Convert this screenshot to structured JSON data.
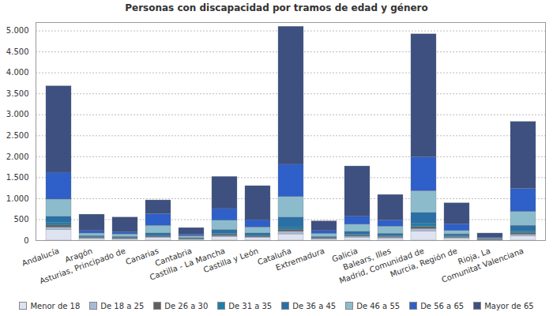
{
  "chart_data": {
    "type": "bar",
    "title": "Personas con discapacidad por tramos de edad y género",
    "stacked": true,
    "grid": true,
    "legend": "bottom",
    "categories": [
      "Andalucía",
      "Aragón",
      "Asturias, Principado de",
      "Canarias",
      "Cantabria",
      "Castilla - La Mancha",
      "Castilla y León",
      "Cataluña",
      "Extremadura",
      "Galicia",
      "Balears, Illes",
      "Madrid, Comunidad de",
      "Murcia, Región de",
      "Rioja, La",
      "Comunitat Valenciana"
    ],
    "ylim": [
      0,
      5200
    ],
    "yticks": [
      0,
      500,
      {
        "value": 1000,
        "label": "1.000"
      },
      {
        "value": 1500,
        "label": "1.500"
      },
      {
        "value": 2000,
        "label": "2.000"
      },
      {
        "value": 2500,
        "label": "2.500"
      },
      {
        "value": 3000,
        "label": "3.000"
      },
      {
        "value": 3500,
        "label": "3.500"
      },
      {
        "value": 4000,
        "label": "4.000"
      },
      {
        "value": 4500,
        "label": "4.500"
      },
      {
        "value": 5000,
        "label": "5.000"
      }
    ],
    "series": [
      {
        "name": "Menor de 18",
        "color": "#dde3f0",
        "values": [
          250,
          40,
          30,
          60,
          20,
          80,
          60,
          150,
          30,
          70,
          50,
          220,
          50,
          10,
          100
        ]
      },
      {
        "name": "De 18 a 25",
        "color": "#a9b8d8",
        "values": [
          60,
          15,
          10,
          20,
          8,
          30,
          20,
          60,
          10,
          25,
          20,
          60,
          15,
          5,
          40
        ]
      },
      {
        "name": "De 26 a 30",
        "color": "#606060",
        "values": [
          50,
          10,
          10,
          15,
          7,
          25,
          15,
          50,
          10,
          20,
          15,
          50,
          15,
          5,
          35
        ]
      },
      {
        "name": "De 31 a 35",
        "color": "#1f7fa8",
        "values": [
          60,
          15,
          10,
          20,
          8,
          30,
          20,
          60,
          10,
          25,
          20,
          70,
          20,
          5,
          40
        ]
      },
      {
        "name": "De 36 a 45",
        "color": "#2a6fa6",
        "values": [
          150,
          30,
          30,
          60,
          20,
          90,
          60,
          230,
          30,
          70,
          60,
          260,
          50,
          10,
          140
        ]
      },
      {
        "name": "De 46 a 55",
        "color": "#8cbccc",
        "values": [
          410,
          60,
          60,
          180,
          40,
          220,
          140,
          490,
          70,
          170,
          170,
          520,
          80,
          20,
          330
        ]
      },
      {
        "name": "De 56 a 65",
        "color": "#2f5fc8",
        "values": [
          640,
          60,
          50,
          280,
          40,
          280,
          175,
          770,
          70,
          190,
          145,
          810,
          160,
          20,
          550
        ]
      },
      {
        "name": "Mayor de 65",
        "color": "#3d5080",
        "values": [
          2060,
          390,
          350,
          325,
          157,
          765,
          810,
          3290,
          230,
          1200,
          610,
          2930,
          500,
          95,
          1595
        ]
      }
    ]
  }
}
